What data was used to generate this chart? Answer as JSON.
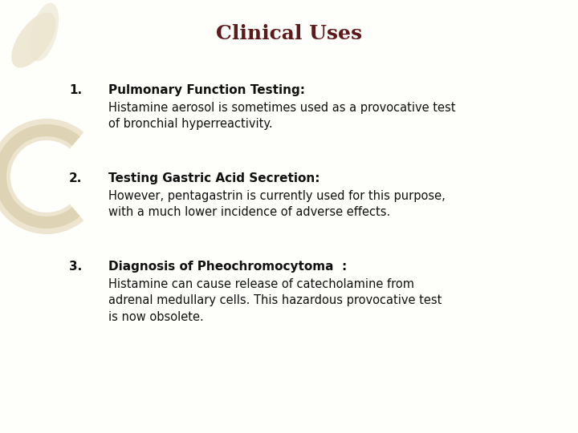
{
  "title": "Clinical Uses",
  "title_color": "#5C1A1A",
  "title_fontsize": 18,
  "background_color": "#FEFEFA",
  "text_color": "#111111",
  "items": [
    {
      "number": "1.",
      "heading": "Pulmonary Function Testing:",
      "body": "Histamine aerosol is sometimes used as a provocative test\nof bronchial hyperreactivity."
    },
    {
      "number": "2.",
      "heading": "Testing Gastric Acid Secretion:",
      "body": "However, pentagastrin is currently used for this purpose,\nwith a much lower incidence of adverse effects."
    },
    {
      "number": "3.",
      "heading": "Diagnosis of Pheochromocytoma  :",
      "body": "Histamine can cause release of catecholamine from\nadrenal medullary cells. This hazardous provocative test\nis now obsolete."
    }
  ],
  "watermark_c_color_light": "#EDE5CF",
  "watermark_c_color_dark": "#D8CCAA",
  "watermark_leaf_color": "#EDE5CF",
  "heading_fontsize": 11,
  "body_fontsize": 10.5,
  "number_fontsize": 11
}
